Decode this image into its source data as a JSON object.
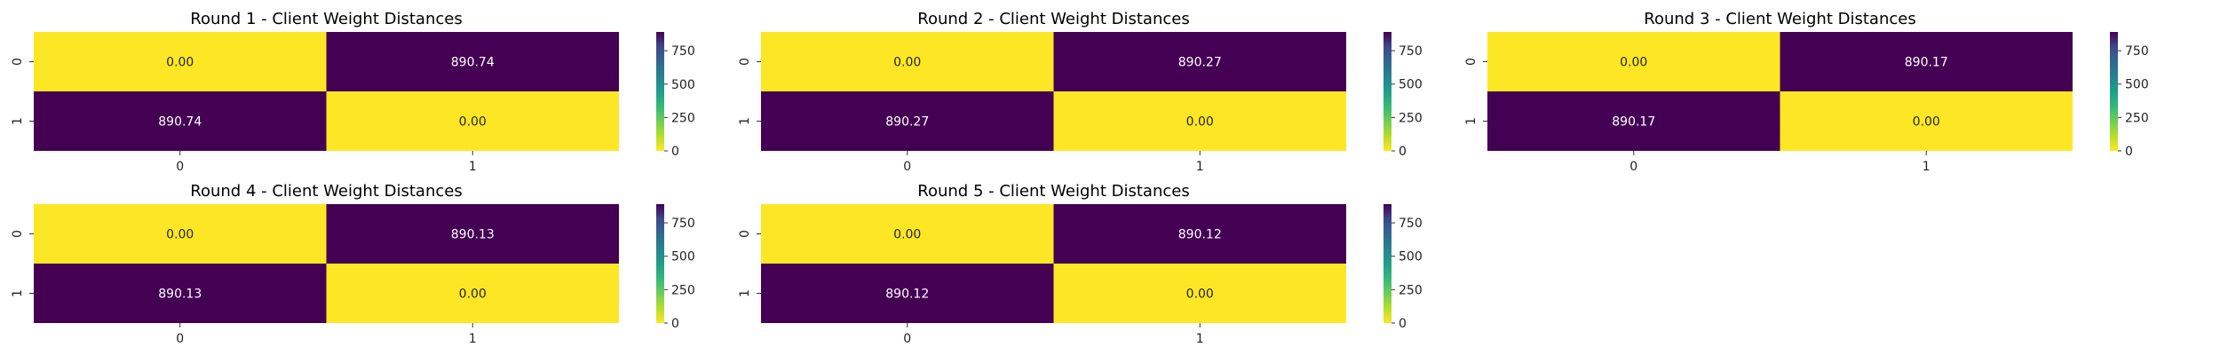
{
  "figure": {
    "background": "#ffffff"
  },
  "chart_data": [
    {
      "type": "heatmap",
      "title": "Round 1 - Client Weight Distances",
      "x_categories": [
        "0",
        "1"
      ],
      "y_categories": [
        "0",
        "1"
      ],
      "values": [
        [
          0.0,
          890.74
        ],
        [
          890.74,
          0.0
        ]
      ],
      "cell_labels": [
        [
          "0.00",
          "890.74"
        ],
        [
          "890.74",
          "0.00"
        ]
      ],
      "colormap": "viridis",
      "colorbar": {
        "range": [
          0,
          890.74
        ],
        "ticks": [
          0,
          250,
          500,
          750
        ]
      }
    },
    {
      "type": "heatmap",
      "title": "Round 2 - Client Weight Distances",
      "x_categories": [
        "0",
        "1"
      ],
      "y_categories": [
        "0",
        "1"
      ],
      "values": [
        [
          0.0,
          890.27
        ],
        [
          890.27,
          0.0
        ]
      ],
      "cell_labels": [
        [
          "0.00",
          "890.27"
        ],
        [
          "890.27",
          "0.00"
        ]
      ],
      "colormap": "viridis",
      "colorbar": {
        "range": [
          0,
          890.27
        ],
        "ticks": [
          0,
          250,
          500,
          750
        ]
      }
    },
    {
      "type": "heatmap",
      "title": "Round 3 - Client Weight Distances",
      "x_categories": [
        "0",
        "1"
      ],
      "y_categories": [
        "0",
        "1"
      ],
      "values": [
        [
          0.0,
          890.17
        ],
        [
          890.17,
          0.0
        ]
      ],
      "cell_labels": [
        [
          "0.00",
          "890.17"
        ],
        [
          "890.17",
          "0.00"
        ]
      ],
      "colormap": "viridis",
      "colorbar": {
        "range": [
          0,
          890.17
        ],
        "ticks": [
          0,
          250,
          500,
          750
        ]
      }
    },
    {
      "type": "heatmap",
      "title": "Round 4 - Client Weight Distances",
      "x_categories": [
        "0",
        "1"
      ],
      "y_categories": [
        "0",
        "1"
      ],
      "values": [
        [
          0.0,
          890.13
        ],
        [
          890.13,
          0.0
        ]
      ],
      "cell_labels": [
        [
          "0.00",
          "890.13"
        ],
        [
          "890.13",
          "0.00"
        ]
      ],
      "colormap": "viridis",
      "colorbar": {
        "range": [
          0,
          890.13
        ],
        "ticks": [
          0,
          250,
          500,
          750
        ]
      }
    },
    {
      "type": "heatmap",
      "title": "Round 5 - Client Weight Distances",
      "x_categories": [
        "0",
        "1"
      ],
      "y_categories": [
        "0",
        "1"
      ],
      "values": [
        [
          0.0,
          890.12
        ],
        [
          890.12,
          0.0
        ]
      ],
      "cell_labels": [
        [
          "0.00",
          "890.12"
        ],
        [
          "890.12",
          "0.00"
        ]
      ],
      "colormap": "viridis",
      "colorbar": {
        "range": [
          0,
          890.12
        ],
        "ticks": [
          0,
          250,
          500,
          750
        ]
      }
    }
  ]
}
